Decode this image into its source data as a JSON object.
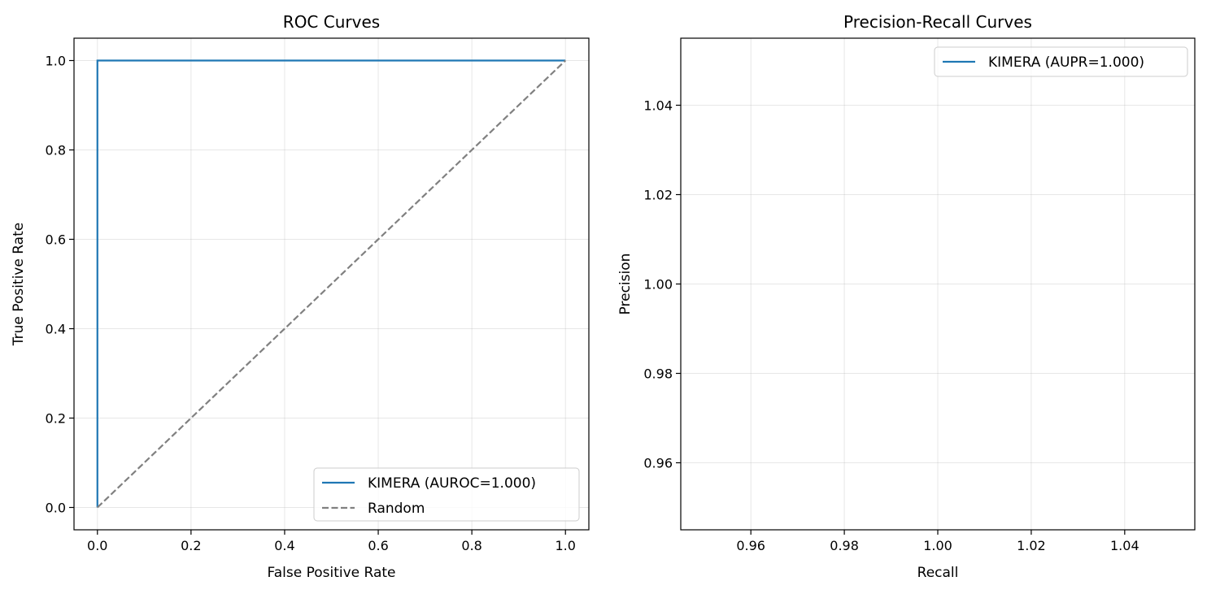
{
  "chart_data": [
    {
      "type": "line",
      "title": "ROC Curves",
      "xlabel": "False Positive Rate",
      "ylabel": "True Positive Rate",
      "xlim": [
        -0.05,
        1.05
      ],
      "ylim": [
        -0.05,
        1.05
      ],
      "xticks": [
        0.0,
        0.2,
        0.4,
        0.6,
        0.8,
        1.0
      ],
      "xtick_labels": [
        "0.0",
        "0.2",
        "0.4",
        "0.6",
        "0.8",
        "1.0"
      ],
      "yticks": [
        0.0,
        0.2,
        0.4,
        0.6,
        0.8,
        1.0
      ],
      "ytick_labels": [
        "0.0",
        "0.2",
        "0.4",
        "0.6",
        "0.8",
        "1.0"
      ],
      "grid": true,
      "legend_position": "lower-right",
      "series": [
        {
          "name": "KIMERA (AUROC=1.000)",
          "color": "#1f77b4",
          "style": "solid",
          "x": [
            0.0,
            0.0,
            1.0
          ],
          "y": [
            0.0,
            1.0,
            1.0
          ]
        },
        {
          "name": "Random",
          "color": "#808080",
          "style": "dashed",
          "x": [
            0.0,
            1.0
          ],
          "y": [
            0.0,
            1.0
          ]
        }
      ]
    },
    {
      "type": "line",
      "title": "Precision-Recall Curves",
      "xlabel": "Recall",
      "ylabel": "Precision",
      "xlim": [
        0.945,
        1.055
      ],
      "ylim": [
        0.945,
        1.055
      ],
      "xticks": [
        0.96,
        0.98,
        1.0,
        1.02,
        1.04
      ],
      "xtick_labels": [
        "0.96",
        "0.98",
        "1.00",
        "1.02",
        "1.04"
      ],
      "yticks": [
        0.96,
        0.98,
        1.0,
        1.02,
        1.04
      ],
      "ytick_labels": [
        "0.96",
        "0.98",
        "1.00",
        "1.02",
        "1.04"
      ],
      "grid": true,
      "legend_position": "upper-right",
      "series": [
        {
          "name": "KIMERA (AUPR=1.000)",
          "color": "#1f77b4",
          "style": "solid",
          "x": [],
          "y": []
        }
      ]
    }
  ]
}
